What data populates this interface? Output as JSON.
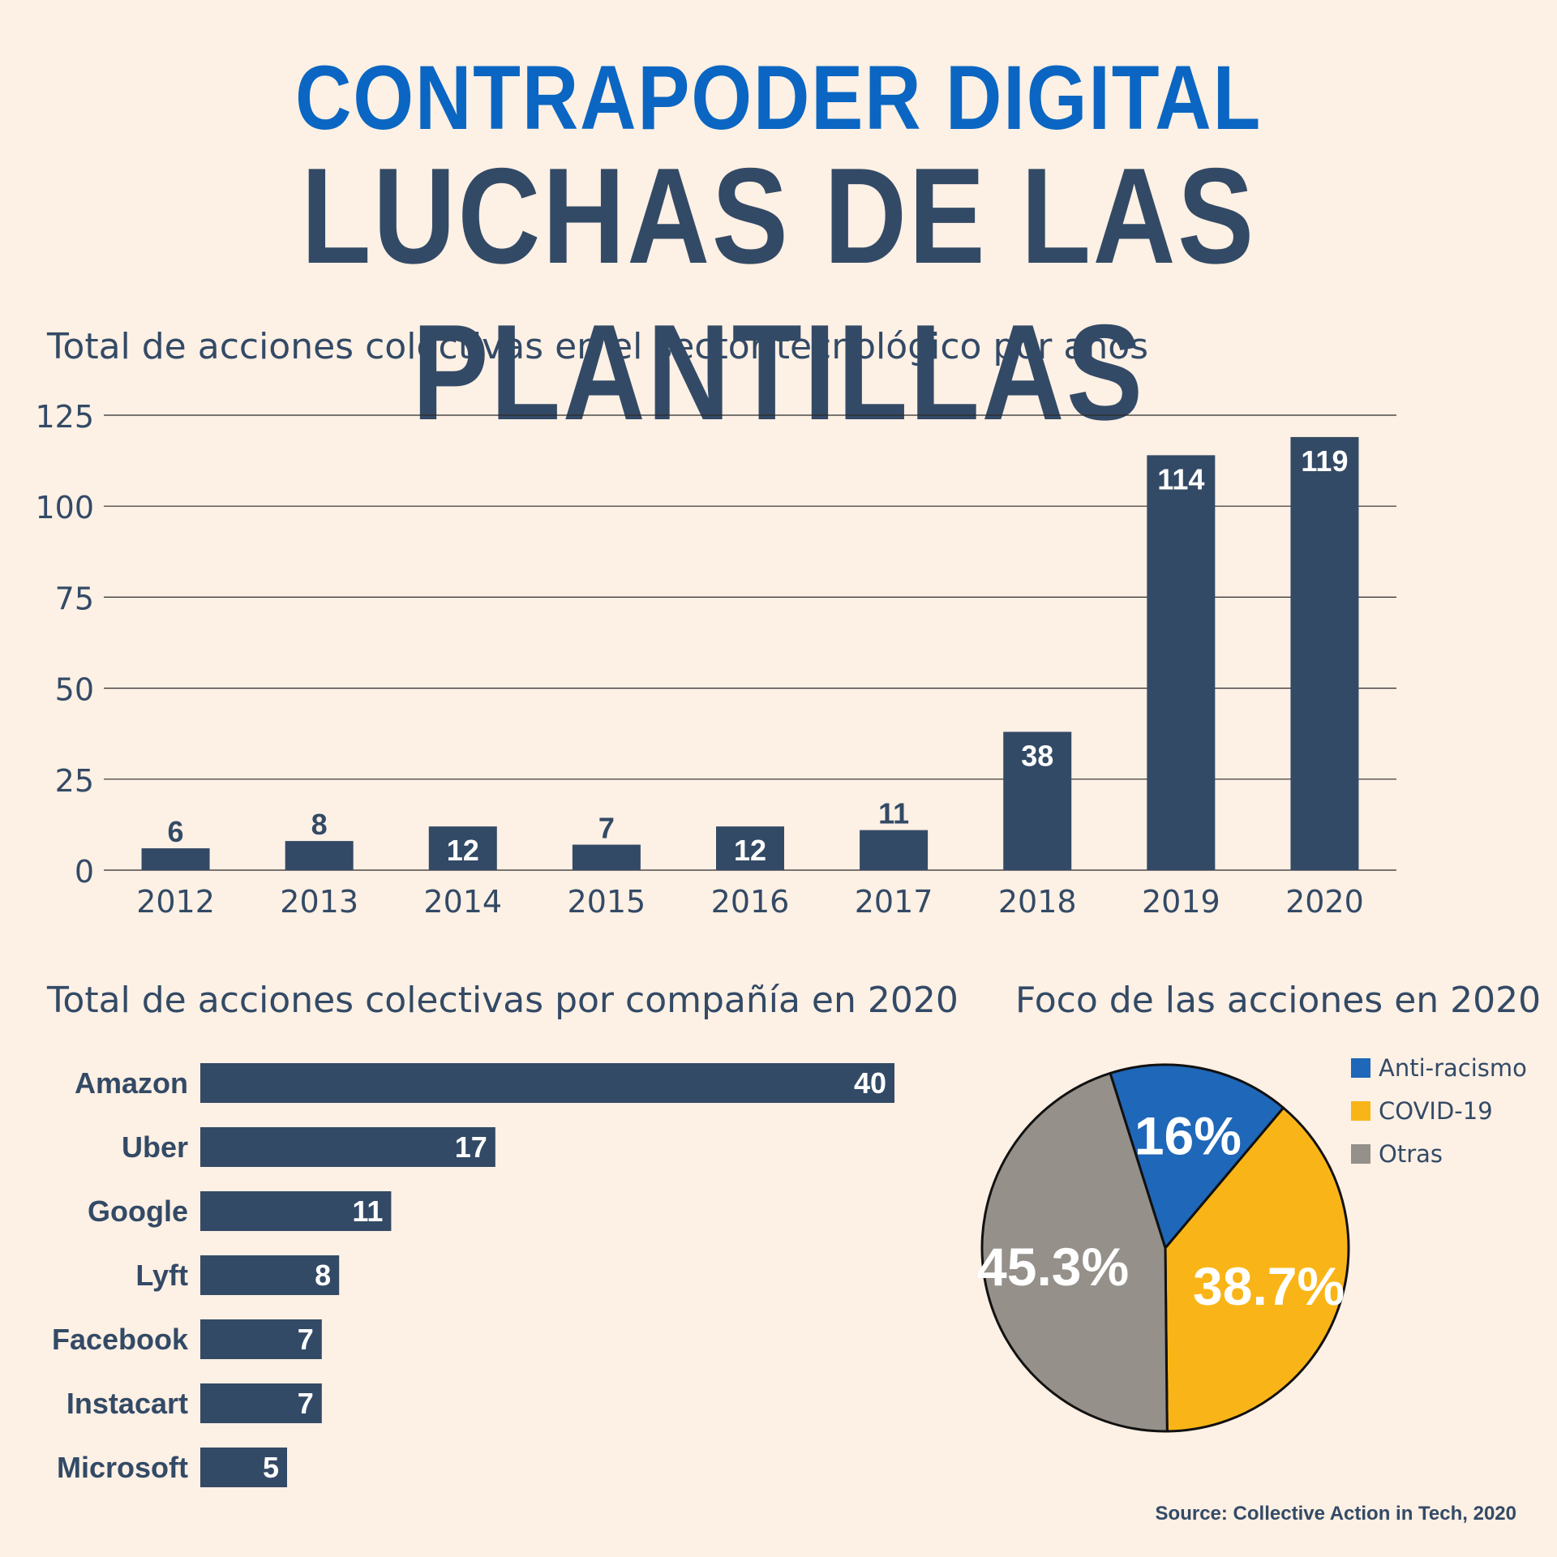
{
  "header": {
    "supertitle": "CONTRAPODER DIGITAL",
    "title": "LUCHAS DE LAS PLANTILLAS"
  },
  "source": "Source: Collective Action in Tech, 2020",
  "colors": {
    "bar": "#334a66",
    "supertitle": "#0a66c2",
    "anti_racismo": "#1f67b8",
    "covid": "#f9b517",
    "otras": "#959089",
    "background": "#fdf0e4"
  },
  "chart_data": [
    {
      "type": "bar",
      "title": "Total de acciones colectivas en el sector tecnológico por años",
      "categories": [
        "2012",
        "2013",
        "2014",
        "2015",
        "2016",
        "2017",
        "2018",
        "2019",
        "2020"
      ],
      "values": [
        6,
        8,
        12,
        7,
        12,
        11,
        38,
        114,
        119
      ],
      "ylim": [
        0,
        125
      ],
      "yticks": [
        0,
        25,
        50,
        75,
        100,
        125
      ],
      "grid": true,
      "data_labels": true
    },
    {
      "type": "bar",
      "orientation": "horizontal",
      "title": "Total de acciones colectivas por compañía en 2020",
      "categories": [
        "Amazon",
        "Uber",
        "Google",
        "Lyft",
        "Facebook",
        "Instacart",
        "Microsoft"
      ],
      "values": [
        40,
        17,
        11,
        8,
        7,
        7,
        5
      ],
      "data_labels": true
    },
    {
      "type": "pie",
      "title": "Foco de las acciones en 2020",
      "labels": [
        "Anti-racismo",
        "COVID-19",
        "Otras"
      ],
      "values": [
        16,
        38.7,
        45.3
      ],
      "value_labels": [
        "16%",
        "38.7%",
        "45.3%"
      ],
      "colors": [
        "#1f67b8",
        "#f9b517",
        "#959089"
      ],
      "legend": "top-right"
    }
  ]
}
